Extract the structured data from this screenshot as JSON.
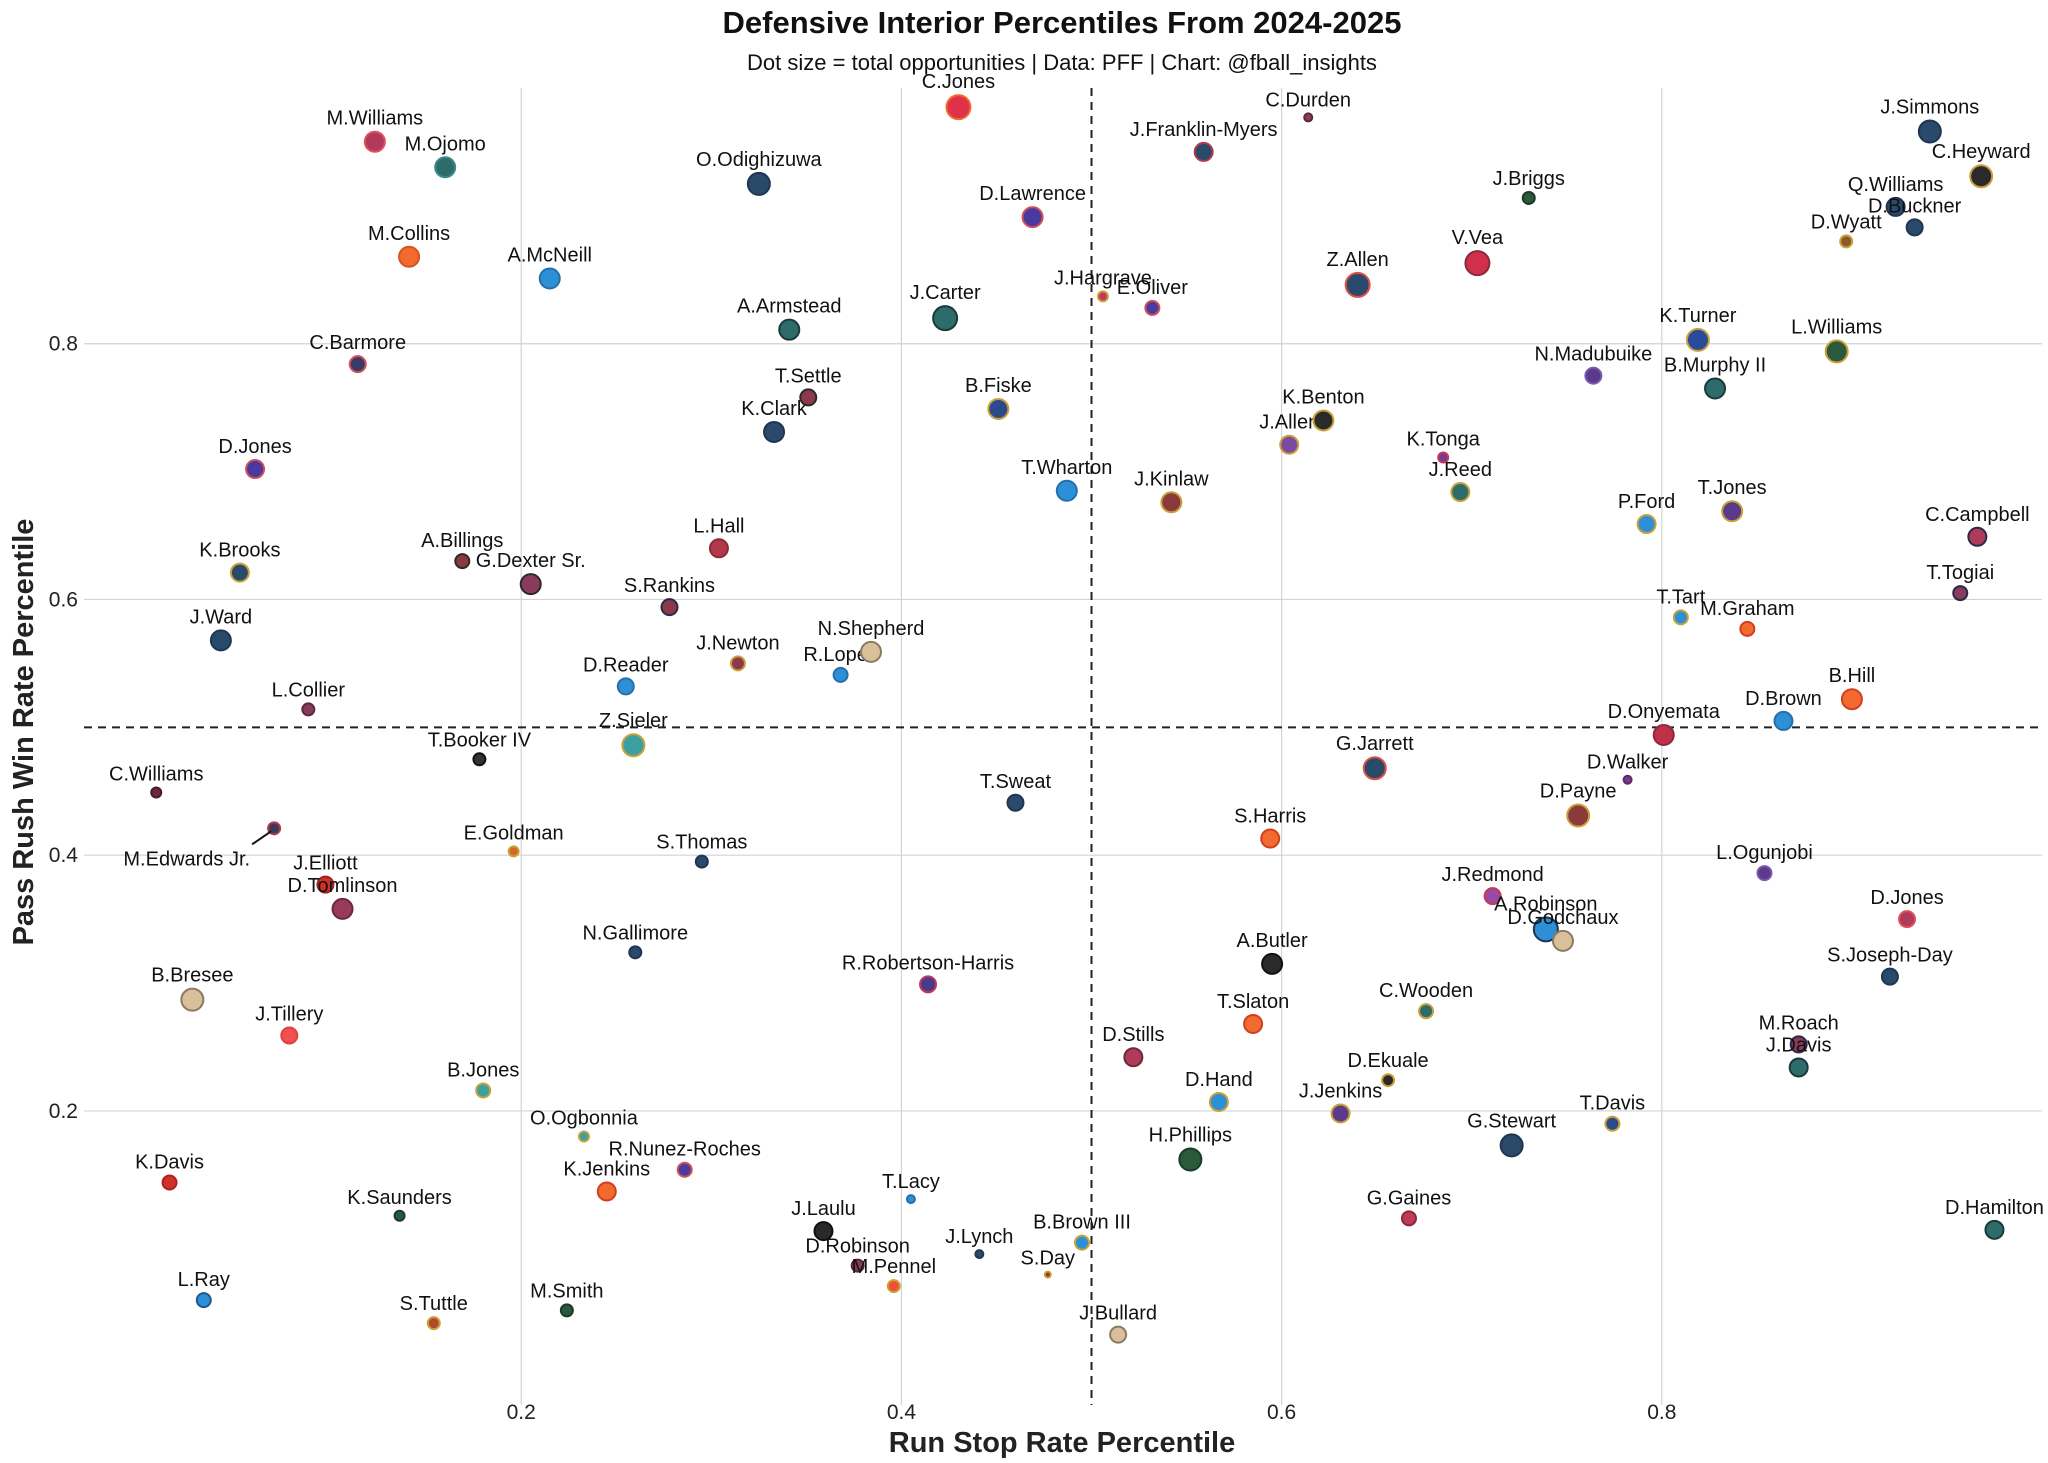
{
  "chart_data": {
    "type": "scatter",
    "title": "Defensive Interior Percentiles From 2024-2025",
    "subtitle": "Dot size = total opportunities | Data: PFF | Chart: @fball_insights",
    "xlabel": "Run Stop Rate Percentile",
    "ylabel": "Pass Rush Win Rate Percentile",
    "xlim": [
      -0.03,
      1.0
    ],
    "ylim": [
      -0.03,
      1.0
    ],
    "xticks": [
      {
        "value": 0.2,
        "label": "0.2"
      },
      {
        "value": 0.4,
        "label": "0.4"
      },
      {
        "value": 0.6,
        "label": "0.6"
      },
      {
        "value": 0.8,
        "label": "0.8"
      }
    ],
    "yticks": [
      {
        "value": 0.2,
        "label": "0.2"
      },
      {
        "value": 0.4,
        "label": "0.4"
      },
      {
        "value": 0.6,
        "label": "0.6"
      },
      {
        "value": 0.8,
        "label": "0.8"
      }
    ],
    "reference_lines": {
      "x": 0.5,
      "y": 0.5
    },
    "points": [
      {
        "name": "M.Williams",
        "x": 0.123,
        "y": 0.958,
        "size": 10,
        "fill": "#b03a5b",
        "edge": "#e0505a"
      },
      {
        "name": "M.Ojomo",
        "x": 0.16,
        "y": 0.938,
        "size": 10,
        "fill": "#2e6b6b",
        "edge": "#3a8a8a"
      },
      {
        "name": "M.Collins",
        "x": 0.141,
        "y": 0.868,
        "size": 10,
        "fill": "#f26a2e",
        "edge": "#d4541f"
      },
      {
        "name": "A.McNeill",
        "x": 0.215,
        "y": 0.851,
        "size": 10,
        "fill": "#2d8fd5",
        "edge": "#2570aa"
      },
      {
        "name": "C.Barmore",
        "x": 0.114,
        "y": 0.784,
        "size": 8,
        "fill": "#3a3a66",
        "edge": "#d0505a"
      },
      {
        "name": "D.Jones",
        "x": 0.06,
        "y": 0.702,
        "size": 9,
        "fill": "#4a3aa0",
        "edge": "#d0505a"
      },
      {
        "name": "K.Brooks",
        "x": 0.052,
        "y": 0.621,
        "size": 9,
        "fill": "#2a4a6b",
        "edge": "#c9a03a"
      },
      {
        "name": "J.Ward",
        "x": 0.042,
        "y": 0.568,
        "size": 10,
        "fill": "#2a4a6b",
        "edge": "#1f3550"
      },
      {
        "name": "L.Collier",
        "x": 0.088,
        "y": 0.514,
        "size": 6,
        "fill": "#8a3a5a",
        "edge": "#5a2a3a"
      },
      {
        "name": "C.Williams",
        "x": 0.008,
        "y": 0.449,
        "size": 5,
        "fill": "#6a2a3a",
        "edge": "#4a1a2a"
      },
      {
        "name": "M.Edwards Jr.",
        "x": 0.07,
        "y": 0.421,
        "size": 6,
        "fill": "#3a3a5a",
        "edge": "#b03a4a",
        "leader": true
      },
      {
        "name": "J.Elliott",
        "x": 0.097,
        "y": 0.377,
        "size": 8,
        "fill": "#d0302a",
        "edge": "#a02020"
      },
      {
        "name": "D.Tomlinson",
        "x": 0.106,
        "y": 0.358,
        "size": 10,
        "fill": "#9a3a5a",
        "edge": "#6a2a3a"
      },
      {
        "name": "B.Bresee",
        "x": 0.027,
        "y": 0.287,
        "size": 11,
        "fill": "#d9c09a",
        "edge": "#8a7a60"
      },
      {
        "name": "J.Tillery",
        "x": 0.078,
        "y": 0.259,
        "size": 8,
        "fill": "#f05050",
        "edge": "#e04040"
      },
      {
        "name": "K.Davis",
        "x": 0.015,
        "y": 0.144,
        "size": 7,
        "fill": "#d0302a",
        "edge": "#b02020"
      },
      {
        "name": "L.Ray",
        "x": 0.033,
        "y": 0.052,
        "size": 7,
        "fill": "#2d8fd5",
        "edge": "#1f5a8a"
      },
      {
        "name": "K.Saunders",
        "x": 0.136,
        "y": 0.118,
        "size": 5,
        "fill": "#2a5a3a",
        "edge": "#1a3a2a"
      },
      {
        "name": "S.Tuttle",
        "x": 0.154,
        "y": 0.034,
        "size": 6,
        "fill": "#b04a2a",
        "edge": "#c9a03a"
      },
      {
        "name": "M.Smith",
        "x": 0.224,
        "y": 0.044,
        "size": 6,
        "fill": "#2a5a3a",
        "edge": "#1a3a2a"
      },
      {
        "name": "B.Jones",
        "x": 0.18,
        "y": 0.216,
        "size": 7,
        "fill": "#3aa0a0",
        "edge": "#c9a03a"
      },
      {
        "name": "O.Ogbonnia",
        "x": 0.233,
        "y": 0.18,
        "size": 5,
        "fill": "#3aa0a0",
        "edge": "#c9a03a"
      },
      {
        "name": "R.Nunez-Roches",
        "x": 0.286,
        "y": 0.154,
        "size": 7,
        "fill": "#4a3aa0",
        "edge": "#d0505a"
      },
      {
        "name": "K.Jenkins",
        "x": 0.245,
        "y": 0.137,
        "size": 9,
        "fill": "#f26a2e",
        "edge": "#d04020"
      },
      {
        "name": "E.Goldman",
        "x": 0.196,
        "y": 0.403,
        "size": 5,
        "fill": "#d46a1f",
        "edge": "#c9a03a"
      },
      {
        "name": "N.Gallimore",
        "x": 0.26,
        "y": 0.324,
        "size": 6,
        "fill": "#2a4a6b",
        "edge": "#1f3550"
      },
      {
        "name": "S.Thomas",
        "x": 0.295,
        "y": 0.395,
        "size": 6,
        "fill": "#2a4a6b",
        "edge": "#1f3550"
      },
      {
        "name": "T.Booker IV",
        "x": 0.178,
        "y": 0.475,
        "size": 6,
        "fill": "#333333",
        "edge": "#111111"
      },
      {
        "name": "Z.Sieler",
        "x": 0.259,
        "y": 0.486,
        "size": 11,
        "fill": "#3aa0a0",
        "edge": "#c9a03a"
      },
      {
        "name": "D.Reader",
        "x": 0.255,
        "y": 0.532,
        "size": 8,
        "fill": "#2d8fd5",
        "edge": "#2570aa"
      },
      {
        "name": "G.Dexter Sr.",
        "x": 0.205,
        "y": 0.612,
        "size": 10,
        "fill": "#8a3a5a",
        "edge": "#2a2a2a"
      },
      {
        "name": "A.Billings",
        "x": 0.169,
        "y": 0.63,
        "size": 7,
        "fill": "#8a3a3a",
        "edge": "#2a2a2a"
      },
      {
        "name": "S.Rankins",
        "x": 0.278,
        "y": 0.594,
        "size": 8,
        "fill": "#8a3a4a",
        "edge": "#2a2a4a"
      },
      {
        "name": "J.Newton",
        "x": 0.314,
        "y": 0.55,
        "size": 7,
        "fill": "#8a3a4a",
        "edge": "#c9a03a"
      },
      {
        "name": "R.Lopez",
        "x": 0.368,
        "y": 0.541,
        "size": 7,
        "fill": "#2d8fd5",
        "edge": "#2570aa"
      },
      {
        "name": "N.Shepherd",
        "x": 0.384,
        "y": 0.559,
        "size": 10,
        "fill": "#d9c09a",
        "edge": "#8a7a60"
      },
      {
        "name": "L.Hall",
        "x": 0.304,
        "y": 0.64,
        "size": 9,
        "fill": "#b03a4a",
        "edge": "#8a2a3a"
      },
      {
        "name": "K.Clark",
        "x": 0.333,
        "y": 0.731,
        "size": 10,
        "fill": "#2a4a6b",
        "edge": "#1f3550"
      },
      {
        "name": "T.Settle",
        "x": 0.351,
        "y": 0.758,
        "size": 8,
        "fill": "#8a3a4a",
        "edge": "#2a2a2a"
      },
      {
        "name": "A.Armstead",
        "x": 0.341,
        "y": 0.811,
        "size": 10,
        "fill": "#2e6b6b",
        "edge": "#1a3a3a"
      },
      {
        "name": "O.Odighizuwa",
        "x": 0.325,
        "y": 0.925,
        "size": 11,
        "fill": "#2a4a6b",
        "edge": "#1f3550"
      },
      {
        "name": "C.Jones",
        "x": 0.43,
        "y": 0.985,
        "size": 12,
        "fill": "#e0304a",
        "edge": "#f26a2e"
      },
      {
        "name": "J.Carter",
        "x": 0.423,
        "y": 0.82,
        "size": 12,
        "fill": "#2e6b6b",
        "edge": "#1a3a3a"
      },
      {
        "name": "B.Fiske",
        "x": 0.451,
        "y": 0.749,
        "size": 10,
        "fill": "#2a4a8b",
        "edge": "#c9a03a"
      },
      {
        "name": "D.Lawrence",
        "x": 0.469,
        "y": 0.899,
        "size": 10,
        "fill": "#4a3aa0",
        "edge": "#d0505a"
      },
      {
        "name": "J.Hargrave",
        "x": 0.506,
        "y": 0.837,
        "size": 5,
        "fill": "#c03a5a",
        "edge": "#c9a03a"
      },
      {
        "name": "J.Franklin-Myers",
        "x": 0.559,
        "y": 0.95,
        "size": 9,
        "fill": "#2a4a6b",
        "edge": "#b03a4a"
      },
      {
        "name": "C.Durden",
        "x": 0.614,
        "y": 0.977,
        "size": 4,
        "fill": "#8a3a5a",
        "edge": "#5a2a3a"
      },
      {
        "name": "E.Oliver",
        "x": 0.532,
        "y": 0.828,
        "size": 7,
        "fill": "#4a3aa0",
        "edge": "#d0505a"
      },
      {
        "name": "T.Wharton",
        "x": 0.487,
        "y": 0.685,
        "size": 10,
        "fill": "#2d8fd5",
        "edge": "#2570aa"
      },
      {
        "name": "J.Kinlaw",
        "x": 0.542,
        "y": 0.676,
        "size": 10,
        "fill": "#8a3a3a",
        "edge": "#c9a03a"
      },
      {
        "name": "J.Allen",
        "x": 0.604,
        "y": 0.721,
        "size": 9,
        "fill": "#7a4aa0",
        "edge": "#c9a03a"
      },
      {
        "name": "K.Benton",
        "x": 0.622,
        "y": 0.74,
        "size": 10,
        "fill": "#2a2a2a",
        "edge": "#c9a03a"
      },
      {
        "name": "Z.Allen",
        "x": 0.64,
        "y": 0.846,
        "size": 12,
        "fill": "#2a4a6b",
        "edge": "#e0504a"
      },
      {
        "name": "V.Vea",
        "x": 0.703,
        "y": 0.863,
        "size": 12,
        "fill": "#d0304a",
        "edge": "#8a2a3a"
      },
      {
        "name": "J.Briggs",
        "x": 0.73,
        "y": 0.914,
        "size": 6,
        "fill": "#2a5a3a",
        "edge": "#1a3a2a"
      },
      {
        "name": "K.Tonga",
        "x": 0.685,
        "y": 0.711,
        "size": 5,
        "fill": "#7a3a8a",
        "edge": "#c03a5a"
      },
      {
        "name": "J.Reed",
        "x": 0.694,
        "y": 0.684,
        "size": 9,
        "fill": "#2e6b6b",
        "edge": "#c9a03a"
      },
      {
        "name": "N.Madubuike",
        "x": 0.764,
        "y": 0.775,
        "size": 8,
        "fill": "#5a3a8a",
        "edge": "#7a5aaa"
      },
      {
        "name": "T.Sweat",
        "x": 0.46,
        "y": 0.441,
        "size": 8,
        "fill": "#2a4a6b",
        "edge": "#1f3550"
      },
      {
        "name": "S.Harris",
        "x": 0.594,
        "y": 0.413,
        "size": 9,
        "fill": "#f26a2e",
        "edge": "#d04020"
      },
      {
        "name": "G.Jarrett",
        "x": 0.649,
        "y": 0.468,
        "size": 11,
        "fill": "#2a4a6b",
        "edge": "#e0504a"
      },
      {
        "name": "A.Butler",
        "x": 0.595,
        "y": 0.315,
        "size": 10,
        "fill": "#2a2a2a",
        "edge": "#111111"
      },
      {
        "name": "T.Slaton",
        "x": 0.585,
        "y": 0.268,
        "size": 9,
        "fill": "#f26a2e",
        "edge": "#d04020"
      },
      {
        "name": "D.Stills",
        "x": 0.522,
        "y": 0.242,
        "size": 9,
        "fill": "#b03a5a",
        "edge": "#6a2a3a"
      },
      {
        "name": "D.Hand",
        "x": 0.567,
        "y": 0.207,
        "size": 9,
        "fill": "#2d8fd5",
        "edge": "#c9a03a"
      },
      {
        "name": "H.Phillips",
        "x": 0.552,
        "y": 0.162,
        "size": 11,
        "fill": "#2a5a3a",
        "edge": "#1a3a2a"
      },
      {
        "name": "J.Jenkins",
        "x": 0.631,
        "y": 0.198,
        "size": 9,
        "fill": "#5a3a8a",
        "edge": "#c9a03a"
      },
      {
        "name": "D.Ekuale",
        "x": 0.656,
        "y": 0.224,
        "size": 6,
        "fill": "#2a2a2a",
        "edge": "#c9a03a"
      },
      {
        "name": "C.Wooden",
        "x": 0.676,
        "y": 0.278,
        "size": 7,
        "fill": "#2e6b6b",
        "edge": "#c9a03a"
      },
      {
        "name": "J.Redmond",
        "x": 0.711,
        "y": 0.368,
        "size": 8,
        "fill": "#9a4aa0",
        "edge": "#c03a5a"
      },
      {
        "name": "A.Robinson",
        "x": 0.739,
        "y": 0.342,
        "size": 12,
        "fill": "#2d8fd5",
        "edge": "#1f3550"
      },
      {
        "name": "D.Godchaux",
        "x": 0.748,
        "y": 0.333,
        "size": 10,
        "fill": "#d9c09a",
        "edge": "#8a7a60"
      },
      {
        "name": "D.Payne",
        "x": 0.756,
        "y": 0.431,
        "size": 11,
        "fill": "#8a3a3a",
        "edge": "#c9a03a"
      },
      {
        "name": "D.Walker",
        "x": 0.782,
        "y": 0.459,
        "size": 4,
        "fill": "#7a3a8a",
        "edge": "#5a2a6a"
      },
      {
        "name": "D.Onyemata",
        "x": 0.801,
        "y": 0.494,
        "size": 10,
        "fill": "#c0304a",
        "edge": "#8a2a3a"
      },
      {
        "name": "G.Stewart",
        "x": 0.721,
        "y": 0.173,
        "size": 11,
        "fill": "#2a4a6b",
        "edge": "#1f3550"
      },
      {
        "name": "G.Gaines",
        "x": 0.667,
        "y": 0.116,
        "size": 7,
        "fill": "#c03a5a",
        "edge": "#8a2a3a"
      },
      {
        "name": "T.Davis",
        "x": 0.774,
        "y": 0.19,
        "size": 7,
        "fill": "#2a4a8b",
        "edge": "#c9a03a"
      },
      {
        "name": "L.Ogunjobi",
        "x": 0.854,
        "y": 0.386,
        "size": 7,
        "fill": "#5a3a8a",
        "edge": "#7a5aaa"
      },
      {
        "name": "M.Roach",
        "x": 0.872,
        "y": 0.252,
        "size": 8,
        "fill": "#8a3a5a",
        "edge": "#2a2a4a"
      },
      {
        "name": "J.Davis",
        "x": 0.872,
        "y": 0.234,
        "size": 9,
        "fill": "#2e6b6b",
        "edge": "#1a3a3a"
      },
      {
        "name": "D.Jones",
        "x": 0.929,
        "y": 0.35,
        "size": 8,
        "fill": "#b03a5a",
        "edge": "#e0505a"
      },
      {
        "name": "S.Joseph-Day",
        "x": 0.92,
        "y": 0.305,
        "size": 8,
        "fill": "#2a4a6b",
        "edge": "#1f3550"
      },
      {
        "name": "D.Hamilton",
        "x": 0.975,
        "y": 0.107,
        "size": 9,
        "fill": "#2e6b6b",
        "edge": "#1a3a3a"
      },
      {
        "name": "D.Brown",
        "x": 0.864,
        "y": 0.505,
        "size": 9,
        "fill": "#2d8fd5",
        "edge": "#2570aa"
      },
      {
        "name": "B.Hill",
        "x": 0.9,
        "y": 0.522,
        "size": 10,
        "fill": "#f26a2e",
        "edge": "#d04020"
      },
      {
        "name": "M.Graham",
        "x": 0.845,
        "y": 0.577,
        "size": 7,
        "fill": "#f26a2e",
        "edge": "#d04020"
      },
      {
        "name": "T.Tart",
        "x": 0.81,
        "y": 0.586,
        "size": 7,
        "fill": "#2d8fd5",
        "edge": "#c9a03a"
      },
      {
        "name": "T.Togiai",
        "x": 0.957,
        "y": 0.605,
        "size": 7,
        "fill": "#8a3a5a",
        "edge": "#2a2a4a"
      },
      {
        "name": "C.Campbell",
        "x": 0.966,
        "y": 0.649,
        "size": 9,
        "fill": "#b03a5a",
        "edge": "#2a2a4a"
      },
      {
        "name": "P.Ford",
        "x": 0.792,
        "y": 0.659,
        "size": 9,
        "fill": "#2d8fd5",
        "edge": "#c9a03a"
      },
      {
        "name": "T.Jones",
        "x": 0.837,
        "y": 0.669,
        "size": 10,
        "fill": "#5a3a8a",
        "edge": "#c9a03a"
      },
      {
        "name": "B.Murphy II",
        "x": 0.828,
        "y": 0.765,
        "size": 10,
        "fill": "#2e6b6b",
        "edge": "#1a3a3a"
      },
      {
        "name": "K.Turner",
        "x": 0.819,
        "y": 0.803,
        "size": 11,
        "fill": "#2a4a9b",
        "edge": "#c9a03a"
      },
      {
        "name": "L.Williams",
        "x": 0.892,
        "y": 0.794,
        "size": 11,
        "fill": "#2a5a3a",
        "edge": "#c9a03a"
      },
      {
        "name": "D.Wyatt",
        "x": 0.897,
        "y": 0.88,
        "size": 6,
        "fill": "#8a5a2a",
        "edge": "#c9a03a"
      },
      {
        "name": "Q.Williams",
        "x": 0.923,
        "y": 0.907,
        "size": 9,
        "fill": "#2a4a6b",
        "edge": "#1f3550"
      },
      {
        "name": "D.Buckner",
        "x": 0.933,
        "y": 0.891,
        "size": 8,
        "fill": "#2a4a6b",
        "edge": "#1f3550"
      },
      {
        "name": "J.Simmons",
        "x": 0.941,
        "y": 0.966,
        "size": 11,
        "fill": "#2a4a6b",
        "edge": "#1f3550"
      },
      {
        "name": "C.Heyward",
        "x": 0.968,
        "y": 0.931,
        "size": 11,
        "fill": "#2a2a2a",
        "edge": "#c9a03a"
      },
      {
        "name": "T.Lacy",
        "x": 0.405,
        "y": 0.131,
        "size": 4,
        "fill": "#2d8fd5",
        "edge": "#2570aa"
      },
      {
        "name": "J.Laulu",
        "x": 0.359,
        "y": 0.106,
        "size": 9,
        "fill": "#2a2a2a",
        "edge": "#111111"
      },
      {
        "name": "D.Robinson",
        "x": 0.377,
        "y": 0.079,
        "size": 6,
        "fill": "#8a3a5a",
        "edge": "#5a2a3a"
      },
      {
        "name": "M.Pennel",
        "x": 0.396,
        "y": 0.063,
        "size": 6,
        "fill": "#f05030",
        "edge": "#c9a03a"
      },
      {
        "name": "J.Lynch",
        "x": 0.441,
        "y": 0.088,
        "size": 4,
        "fill": "#2a4a6b",
        "edge": "#1f3550"
      },
      {
        "name": "B.Brown III",
        "x": 0.495,
        "y": 0.097,
        "size": 7,
        "fill": "#2d8fd5",
        "edge": "#c9a03a"
      },
      {
        "name": "S.Day",
        "x": 0.477,
        "y": 0.072,
        "size": 3,
        "fill": "#8a3a2a",
        "edge": "#c9a03a"
      },
      {
        "name": "J.Bullard",
        "x": 0.514,
        "y": 0.025,
        "size": 8,
        "fill": "#d9c09a",
        "edge": "#8a7a60"
      },
      {
        "name": "R.Robertson-Harris",
        "x": 0.414,
        "y": 0.299,
        "size": 8,
        "fill": "#4a3a8a",
        "edge": "#c03a5a"
      }
    ]
  }
}
